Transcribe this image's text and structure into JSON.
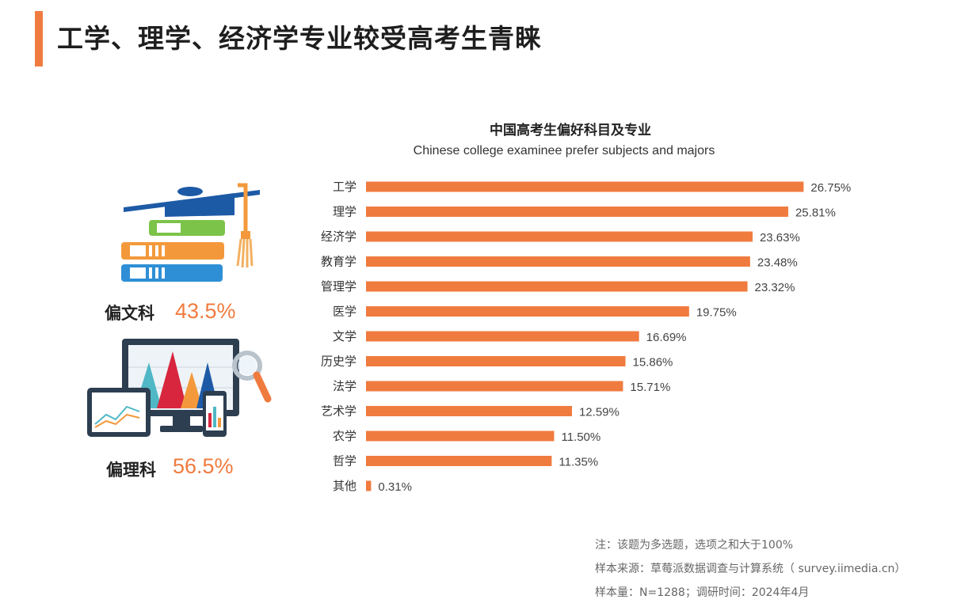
{
  "page": {
    "title": "工学、理学、经济学专业较受高考生青睐",
    "accent_color": "#f07b3f"
  },
  "left_panel": {
    "liberal_arts": {
      "icon": "books-graduation-cap-icon",
      "label": "偏文科",
      "value": "43.5%"
    },
    "science": {
      "icon": "data-charts-devices-icon",
      "label": "偏理科",
      "value": "56.5%"
    }
  },
  "chart_data": {
    "type": "bar",
    "orientation": "horizontal",
    "title": "中国高考生偏好科目及专业",
    "subtitle": "Chinese college examinee prefer subjects and majors",
    "categories": [
      "工学",
      "理学",
      "经济学",
      "教育学",
      "管理学",
      "医学",
      "文学",
      "历史学",
      "法学",
      "艺术学",
      "农学",
      "哲学",
      "其他"
    ],
    "values": [
      26.75,
      25.81,
      23.63,
      23.48,
      23.32,
      19.75,
      16.69,
      15.86,
      15.71,
      12.59,
      11.5,
      11.35,
      0.31
    ],
    "value_labels": [
      "26.75%",
      "25.81%",
      "23.63%",
      "23.48%",
      "23.32%",
      "19.75%",
      "16.69%",
      "15.86%",
      "15.71%",
      "12.59%",
      "11.50%",
      "11.35%",
      "0.31%"
    ],
    "unit": "%",
    "bar_color": "#f07b3f",
    "grid": false,
    "legend": "none"
  },
  "notes": [
    "注：该题为多选题，选项之和大于100%",
    "样本来源：草莓派数据调查与计算系统（ survey.iimedia.cn）",
    "样本量：N=1288；调研时间：2024年4月"
  ]
}
